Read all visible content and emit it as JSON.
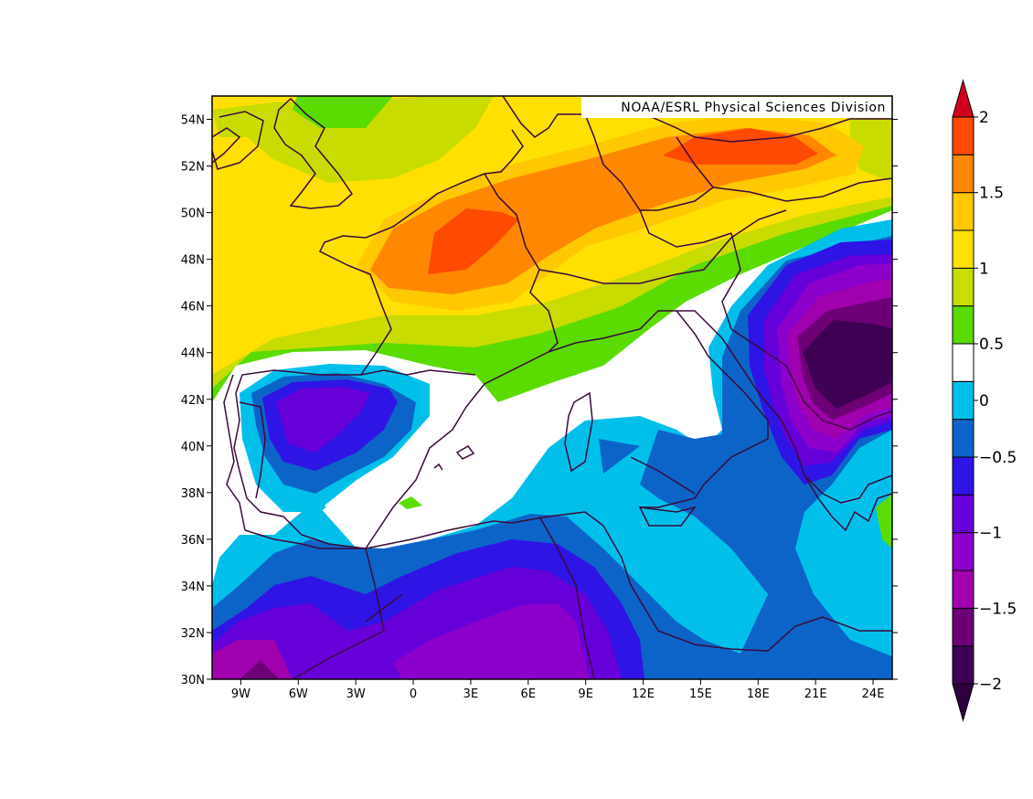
{
  "map": {
    "credit": "NOAA/ESRL Physical Sciences Division",
    "lon_range": [
      -10.5,
      25
    ],
    "lat_range": [
      30,
      55
    ],
    "lon_ticks": [
      {
        "value": -9,
        "label": "9W"
      },
      {
        "value": -6,
        "label": "6W"
      },
      {
        "value": -3,
        "label": "3W"
      },
      {
        "value": 0,
        "label": "0"
      },
      {
        "value": 3,
        "label": "3E"
      },
      {
        "value": 6,
        "label": "6E"
      },
      {
        "value": 9,
        "label": "9E"
      },
      {
        "value": 12,
        "label": "12E"
      },
      {
        "value": 15,
        "label": "15E"
      },
      {
        "value": 18,
        "label": "18E"
      },
      {
        "value": 21,
        "label": "21E"
      },
      {
        "value": 24,
        "label": "24E"
      }
    ],
    "lat_ticks": [
      {
        "value": 30,
        "label": "30N"
      },
      {
        "value": 32,
        "label": "32N"
      },
      {
        "value": 34,
        "label": "34N"
      },
      {
        "value": 36,
        "label": "36N"
      },
      {
        "value": 38,
        "label": "38N"
      },
      {
        "value": 40,
        "label": "40N"
      },
      {
        "value": 42,
        "label": "42N"
      },
      {
        "value": 44,
        "label": "44N"
      },
      {
        "value": 46,
        "label": "46N"
      },
      {
        "value": 48,
        "label": "48N"
      },
      {
        "value": 50,
        "label": "50N"
      },
      {
        "value": 52,
        "label": "52N"
      },
      {
        "value": 54,
        "label": "54N"
      }
    ]
  },
  "colorbar": {
    "levels": [
      -2,
      -1.75,
      -1.5,
      -1.25,
      -1,
      -0.75,
      -0.5,
      -0.25,
      0.25,
      0.5,
      0.75,
      1,
      1.25,
      1.5,
      1.75,
      2
    ],
    "colors": [
      "#3d0052",
      "#6e0076",
      "#a000ad",
      "#8c00cc",
      "#6600d8",
      "#2f14e6",
      "#0d64c8",
      "#00c0ea",
      "#ffffff",
      "#5adc00",
      "#c8dc00",
      "#ffe000",
      "#ffc800",
      "#ff8800",
      "#ff4a00"
    ],
    "below_color": "#2e003e",
    "above_color": "#d0001a",
    "labels": [
      {
        "value": -2,
        "label": "−2"
      },
      {
        "value": -1.5,
        "label": "−1.5"
      },
      {
        "value": -1,
        "label": "−1"
      },
      {
        "value": -0.5,
        "label": "−0.5"
      },
      {
        "value": 0,
        "label": "0"
      },
      {
        "value": 0.5,
        "label": "0.5"
      },
      {
        "value": 1,
        "label": "1"
      },
      {
        "value": 1.5,
        "label": "1.5"
      },
      {
        "value": 2,
        "label": "2"
      }
    ]
  }
}
